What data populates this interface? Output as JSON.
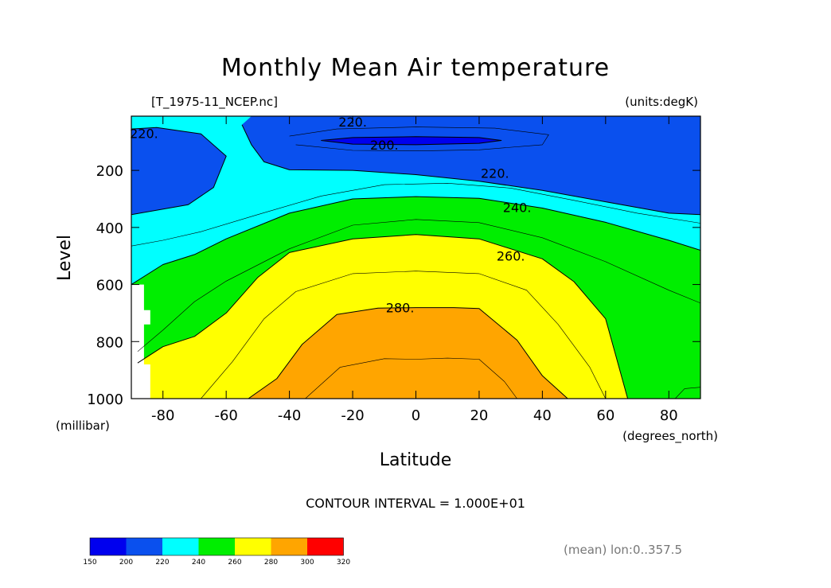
{
  "title": "Monthly Mean Air temperature",
  "file_label": "[T_1975-11_NCEP.nc]",
  "units_label": "(units:degK)",
  "contour_interval": "CONTOUR INTERVAL = 1.000E+01",
  "mean_note": "(mean) lon:0..357.5",
  "chart_data": {
    "type": "contour",
    "title": "Monthly Mean Air temperature",
    "variable_units": "degK",
    "x": {
      "label": "Latitude",
      "units": "(degrees_north)",
      "range": [
        -90,
        90
      ],
      "ticks": [
        -80,
        -60,
        -40,
        -20,
        0,
        20,
        40,
        60,
        80
      ],
      "tick_labels": [
        "-80",
        "-60",
        "-40",
        "-20",
        "0",
        "20",
        "40",
        "60",
        "80"
      ]
    },
    "y": {
      "label": "Level",
      "units": "(millibar)",
      "range": [
        1000,
        10
      ],
      "ticks": [
        200,
        400,
        600,
        800,
        1000
      ],
      "tick_labels": [
        "200",
        "400",
        "600",
        "800",
        "1000"
      ],
      "inverted": true
    },
    "contour_interval": 10,
    "contour_labels": [
      {
        "text": "220.",
        "lat": -20,
        "lev": 30
      },
      {
        "text": "220.",
        "lat": -86,
        "lev": 70
      },
      {
        "text": "200.",
        "lat": -10,
        "lev": 110
      },
      {
        "text": "220.",
        "lat": 25,
        "lev": 210
      },
      {
        "text": "240.",
        "lat": 32,
        "lev": 330
      },
      {
        "text": "260.",
        "lat": 30,
        "lev": 500
      },
      {
        "text": "280.",
        "lat": -5,
        "lev": 680
      }
    ],
    "bands": [
      {
        "min": 150,
        "max": 200,
        "color": "#0000ee"
      },
      {
        "min": 200,
        "max": 220,
        "color": "#0a50ee"
      },
      {
        "min": 220,
        "max": 240,
        "color": "#00ffff"
      },
      {
        "min": 240,
        "max": 260,
        "color": "#00ee00"
      },
      {
        "min": 260,
        "max": 280,
        "color": "#ffff00"
      },
      {
        "min": 280,
        "max": 300,
        "color": "#ffa500"
      },
      {
        "min": 300,
        "max": 320,
        "color": "#ff0000"
      }
    ],
    "colorbar": {
      "ticks": [
        "150",
        "200",
        "220",
        "240",
        "260",
        "280",
        "300",
        "320"
      ],
      "colors": [
        "#0000ee",
        "#0a50ee",
        "#00ffff",
        "#00ee00",
        "#ffff00",
        "#ffa500",
        "#ff0000"
      ]
    },
    "regions": [
      {
        "color": "#00ffff",
        "points": [
          [
            -90,
            10
          ],
          [
            90,
            10
          ],
          [
            90,
            1000
          ],
          [
            -90,
            1000
          ]
        ]
      },
      {
        "color": "#0a50ee",
        "points": [
          [
            -90,
            55
          ],
          [
            -82,
            50
          ],
          [
            -68,
            72
          ],
          [
            -60,
            150
          ],
          [
            -64,
            260
          ],
          [
            -72,
            320
          ],
          [
            -90,
            355
          ]
        ]
      },
      {
        "color": "#0a50ee",
        "points": [
          [
            -52,
            10
          ],
          [
            90,
            10
          ],
          [
            90,
            355
          ],
          [
            80,
            350
          ],
          [
            60,
            310
          ],
          [
            40,
            270
          ],
          [
            20,
            238
          ],
          [
            0,
            215
          ],
          [
            -20,
            200
          ],
          [
            -40,
            198
          ],
          [
            -48,
            170
          ],
          [
            -52,
            110
          ],
          [
            -55,
            40
          ]
        ]
      },
      {
        "color": "#0000ee",
        "points": [
          [
            -30,
            95
          ],
          [
            -20,
            85
          ],
          [
            0,
            82
          ],
          [
            20,
            85
          ],
          [
            27,
            95
          ],
          [
            20,
            105
          ],
          [
            0,
            110
          ],
          [
            -20,
            108
          ]
        ]
      },
      {
        "color": "#00ee00",
        "points": [
          [
            -90,
            600
          ],
          [
            -80,
            530
          ],
          [
            -70,
            495
          ],
          [
            -60,
            440
          ],
          [
            -40,
            350
          ],
          [
            -20,
            300
          ],
          [
            0,
            292
          ],
          [
            20,
            298
          ],
          [
            40,
            332
          ],
          [
            60,
            382
          ],
          [
            80,
            445
          ],
          [
            90,
            480
          ],
          [
            90,
            1000
          ],
          [
            -90,
            1000
          ]
        ]
      },
      {
        "color": "#ffff00",
        "points": [
          [
            -90,
            1000
          ],
          [
            -88,
            875
          ],
          [
            -80,
            818
          ],
          [
            -70,
            782
          ],
          [
            -60,
            700
          ],
          [
            -50,
            575
          ],
          [
            -40,
            488
          ],
          [
            -20,
            440
          ],
          [
            0,
            425
          ],
          [
            20,
            440
          ],
          [
            40,
            510
          ],
          [
            50,
            590
          ],
          [
            60,
            720
          ],
          [
            67,
            1000
          ]
        ]
      },
      {
        "color": "#ffa500",
        "points": [
          [
            -53,
            1000
          ],
          [
            -44,
            930
          ],
          [
            -36,
            810
          ],
          [
            -25,
            705
          ],
          [
            -12,
            683
          ],
          [
            0,
            681
          ],
          [
            12,
            681
          ],
          [
            20,
            684
          ],
          [
            32,
            795
          ],
          [
            40,
            920
          ],
          [
            48,
            1000
          ]
        ]
      },
      {
        "color": "#ffffff",
        "points": [
          [
            -90,
            600
          ],
          [
            -86,
            600
          ],
          [
            -86,
            690
          ],
          [
            -84,
            690
          ],
          [
            -84,
            740
          ],
          [
            -86,
            740
          ],
          [
            -86,
            880
          ],
          [
            -84,
            880
          ],
          [
            -84,
            1000
          ],
          [
            -90,
            1000
          ]
        ]
      }
    ],
    "contour_lines": [
      {
        "width": 0.6,
        "points": [
          [
            -40,
            80
          ],
          [
            -25,
            55
          ],
          [
            0,
            48
          ],
          [
            25,
            52
          ],
          [
            42,
            75
          ],
          [
            40,
            110
          ],
          [
            20,
            128
          ],
          [
            0,
            132
          ],
          [
            -20,
            130
          ],
          [
            -38,
            110
          ]
        ]
      },
      {
        "width": 0.6,
        "points": [
          [
            -90,
            465
          ],
          [
            -80,
            445
          ],
          [
            -68,
            415
          ],
          [
            -50,
            355
          ],
          [
            -30,
            290
          ],
          [
            -10,
            250
          ],
          [
            10,
            245
          ],
          [
            30,
            262
          ],
          [
            50,
            305
          ],
          [
            70,
            350
          ],
          [
            90,
            385
          ]
        ]
      },
      {
        "width": 0.6,
        "points": [
          [
            -88,
            835
          ],
          [
            -80,
            760
          ],
          [
            -70,
            660
          ],
          [
            -60,
            588
          ],
          [
            -40,
            475
          ],
          [
            -20,
            392
          ],
          [
            0,
            372
          ],
          [
            20,
            383
          ],
          [
            40,
            436
          ],
          [
            60,
            520
          ],
          [
            80,
            620
          ],
          [
            90,
            665
          ]
        ]
      },
      {
        "width": 0.6,
        "points": [
          [
            -68,
            1000
          ],
          [
            -58,
            870
          ],
          [
            -48,
            720
          ],
          [
            -38,
            625
          ],
          [
            -20,
            562
          ],
          [
            0,
            553
          ],
          [
            20,
            562
          ],
          [
            35,
            620
          ],
          [
            45,
            740
          ],
          [
            55,
            890
          ],
          [
            60,
            1000
          ]
        ]
      },
      {
        "width": 0.6,
        "points": [
          [
            -35,
            1000
          ],
          [
            -24,
            890
          ],
          [
            -10,
            860
          ],
          [
            0,
            862
          ],
          [
            10,
            858
          ],
          [
            20,
            862
          ],
          [
            28,
            940
          ],
          [
            32,
            1000
          ]
        ]
      },
      {
        "width": 0.6,
        "points": [
          [
            82,
            1000
          ],
          [
            85,
            965
          ],
          [
            90,
            960
          ]
        ]
      },
      {
        "width": 1.0,
        "points": [
          [
            -30,
            95
          ],
          [
            -20,
            85
          ],
          [
            0,
            82
          ],
          [
            20,
            85
          ],
          [
            27,
            95
          ],
          [
            20,
            105
          ],
          [
            0,
            110
          ],
          [
            -20,
            108
          ],
          [
            -30,
            95
          ]
        ]
      },
      {
        "width": 1.0,
        "points": [
          [
            -90,
            55
          ],
          [
            -82,
            50
          ],
          [
            -68,
            72
          ],
          [
            -60,
            150
          ],
          [
            -64,
            260
          ],
          [
            -72,
            320
          ],
          [
            -90,
            355
          ]
        ]
      },
      {
        "width": 1.0,
        "points": [
          [
            -55,
            40
          ],
          [
            -52,
            110
          ],
          [
            -48,
            170
          ],
          [
            -40,
            198
          ],
          [
            -20,
            200
          ],
          [
            0,
            215
          ],
          [
            20,
            238
          ],
          [
            40,
            270
          ],
          [
            60,
            310
          ],
          [
            80,
            350
          ],
          [
            90,
            355
          ]
        ]
      },
      {
        "width": 1.0,
        "points": [
          [
            -90,
            600
          ],
          [
            -80,
            530
          ],
          [
            -70,
            495
          ],
          [
            -60,
            440
          ],
          [
            -40,
            350
          ],
          [
            -20,
            300
          ],
          [
            0,
            292
          ],
          [
            20,
            298
          ],
          [
            40,
            332
          ],
          [
            60,
            382
          ],
          [
            80,
            445
          ],
          [
            90,
            480
          ]
        ]
      },
      {
        "width": 1.0,
        "points": [
          [
            -88,
            875
          ],
          [
            -80,
            818
          ],
          [
            -70,
            782
          ],
          [
            -60,
            700
          ],
          [
            -50,
            575
          ],
          [
            -40,
            488
          ],
          [
            -20,
            440
          ],
          [
            0,
            425
          ],
          [
            20,
            440
          ],
          [
            40,
            510
          ],
          [
            50,
            590
          ],
          [
            60,
            720
          ],
          [
            67,
            1000
          ]
        ]
      },
      {
        "width": 1.0,
        "points": [
          [
            -53,
            1000
          ],
          [
            -44,
            930
          ],
          [
            -36,
            810
          ],
          [
            -25,
            705
          ],
          [
            -12,
            683
          ],
          [
            0,
            681
          ],
          [
            12,
            681
          ],
          [
            20,
            684
          ],
          [
            32,
            795
          ],
          [
            40,
            920
          ],
          [
            48,
            1000
          ]
        ]
      }
    ]
  }
}
